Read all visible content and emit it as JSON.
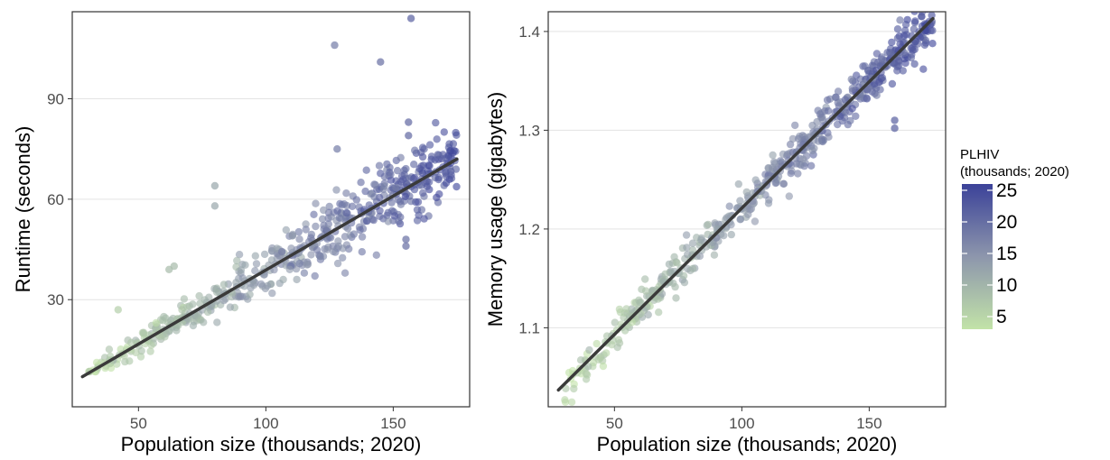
{
  "chart_data": [
    {
      "type": "scatter",
      "xlabel": "Population size (thousands; 2020)",
      "ylabel": "Runtime (seconds)",
      "xlim": [
        24,
        180
      ],
      "ylim": [
        -2,
        116
      ],
      "x_ticks": [
        50,
        100,
        150
      ],
      "y_ticks": [
        30,
        60,
        90
      ],
      "grid": "horizontal major",
      "point_color_variable": "PLHIV",
      "regression_line": {
        "x": [
          28,
          175
        ],
        "y": [
          7,
          72
        ]
      },
      "outliers": [
        {
          "x": 157,
          "y": 114,
          "c": 22
        },
        {
          "x": 127,
          "y": 106,
          "c": 18
        },
        {
          "x": 145,
          "y": 101,
          "c": 20
        },
        {
          "x": 80,
          "y": 64,
          "c": 12
        },
        {
          "x": 128,
          "y": 75,
          "c": 18
        },
        {
          "x": 156,
          "y": 83,
          "c": 21
        },
        {
          "x": 156,
          "y": 79,
          "c": 21
        },
        {
          "x": 155,
          "y": 46,
          "c": 20
        },
        {
          "x": 155,
          "y": 48,
          "c": 20
        },
        {
          "x": 64,
          "y": 40,
          "c": 9
        },
        {
          "x": 62,
          "y": 39,
          "c": 9
        },
        {
          "x": 80,
          "y": 58,
          "c": 12
        },
        {
          "x": 42,
          "y": 27,
          "c": 6
        }
      ]
    },
    {
      "type": "scatter",
      "xlabel": "Population size (thousands; 2020)",
      "ylabel": "Memory usage (gigabytes)",
      "xlim": [
        24,
        180
      ],
      "ylim": [
        1.02,
        1.42
      ],
      "x_ticks": [
        50,
        100,
        150
      ],
      "y_ticks": [
        1.1,
        1.2,
        1.3,
        1.4
      ],
      "grid": "horizontal major",
      "point_color_variable": "PLHIV",
      "regression_line": {
        "x": [
          28,
          175
        ],
        "y": [
          1.037,
          1.413
        ]
      },
      "outliers": [
        {
          "x": 160,
          "y": 1.302,
          "c": 22
        },
        {
          "x": 160,
          "y": 1.31,
          "c": 22
        },
        {
          "x": 168,
          "y": 1.39,
          "c": 23
        }
      ]
    }
  ],
  "legend": {
    "title_line1": "PLHIV",
    "title_line2": "(thousands; 2020)",
    "labels": [
      "25",
      "20",
      "15",
      "10",
      "5"
    ],
    "values": [
      25,
      20,
      15,
      10,
      5
    ],
    "range": [
      3,
      26
    ],
    "colors": {
      "low": "#c2e3a8",
      "mid": "#8d96ac",
      "high": "#3b4299"
    }
  },
  "colors": {
    "points": "gradient",
    "regression_line": "#3a3a3a",
    "panel_border": "#333333",
    "grid": "#e3e3e3"
  }
}
